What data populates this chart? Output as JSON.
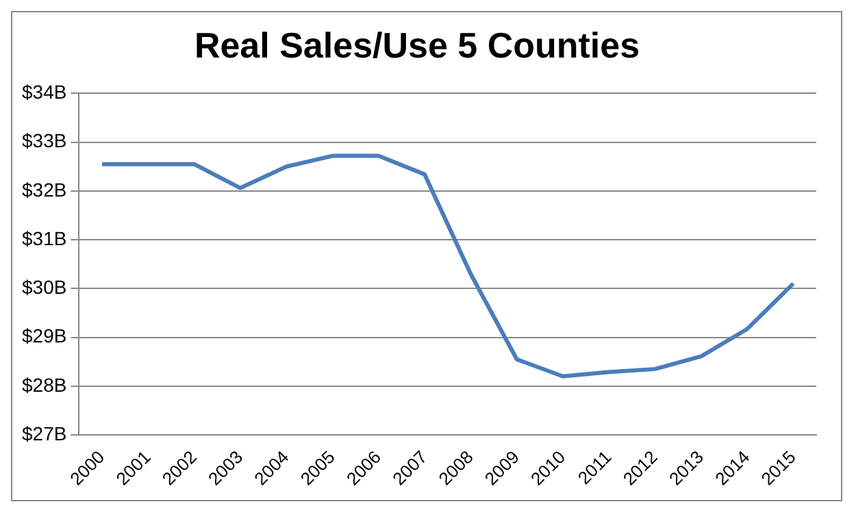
{
  "chart_data": {
    "type": "line",
    "title": "Real Sales/Use 5 Counties",
    "categories": [
      "2000",
      "2001",
      "2002",
      "2003",
      "2004",
      "2005",
      "2006",
      "2007",
      "2008",
      "2009",
      "2010",
      "2011",
      "2012",
      "2013",
      "2014",
      "2015"
    ],
    "series": [
      {
        "color": "#4a7ebb",
        "values": [
          32.55,
          32.55,
          32.55,
          32.06,
          32.5,
          32.72,
          32.72,
          32.34,
          30.3,
          28.55,
          28.2,
          28.29,
          28.35,
          28.61,
          29.17,
          30.1
        ]
      }
    ],
    "ylim": [
      27,
      34
    ],
    "yticks": [
      {
        "value": 27,
        "label": "$27B"
      },
      {
        "value": 28,
        "label": "$28B"
      },
      {
        "value": 29,
        "label": "$29B"
      },
      {
        "value": 30,
        "label": "$30B"
      },
      {
        "value": 31,
        "label": "$31B"
      },
      {
        "value": 32,
        "label": "$32B"
      },
      {
        "value": 33,
        "label": "$33B"
      },
      {
        "value": 34,
        "label": "$34B"
      }
    ],
    "grid": "y",
    "legend": false,
    "marker": "none",
    "line_style": "solid"
  }
}
